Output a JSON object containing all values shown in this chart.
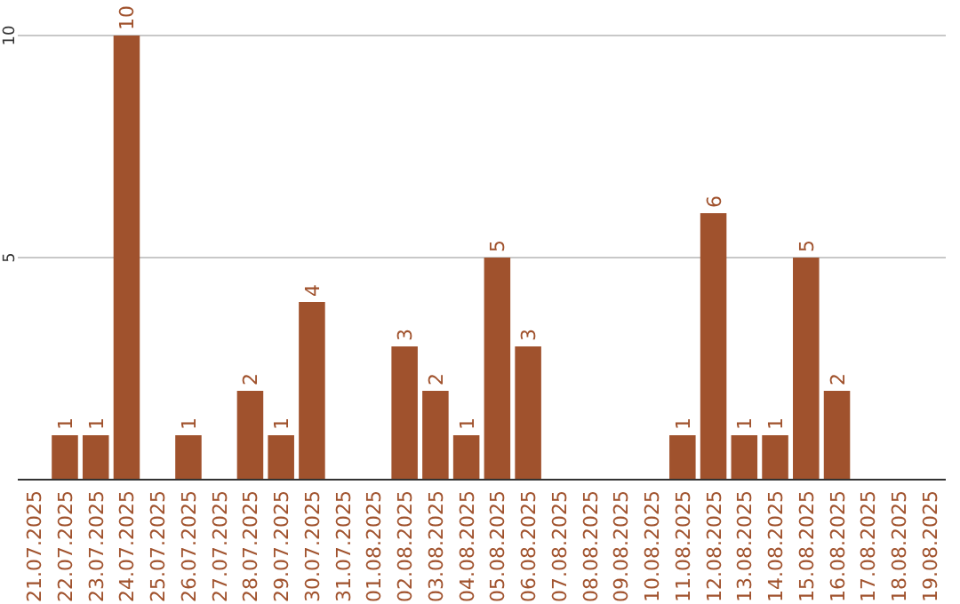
{
  "chart_data": {
    "type": "bar",
    "categories": [
      "21.07.2025",
      "22.07.2025",
      "23.07.2025",
      "24.07.2025",
      "25.07.2025",
      "26.07.2025",
      "27.07.2025",
      "28.07.2025",
      "29.07.2025",
      "30.07.2025",
      "31.07.2025",
      "01.08.2025",
      "02.08.2025",
      "03.08.2025",
      "04.08.2025",
      "05.08.2025",
      "06.08.2025",
      "07.08.2025",
      "08.08.2025",
      "09.08.2025",
      "10.08.2025",
      "11.08.2025",
      "12.08.2025",
      "13.08.2025",
      "14.08.2025",
      "15.08.2025",
      "16.08.2025",
      "17.08.2025",
      "18.08.2025",
      "19.08.2025"
    ],
    "values": [
      null,
      1,
      1,
      10,
      null,
      1,
      null,
      2,
      1,
      4,
      null,
      null,
      3,
      2,
      1,
      5,
      3,
      null,
      null,
      null,
      null,
      1,
      6,
      1,
      1,
      5,
      2,
      null,
      null,
      null
    ],
    "color": "#a0522d",
    "ylim": [
      0,
      10
    ],
    "yticks": [
      5,
      10
    ],
    "grid": "y",
    "data_labels": true
  }
}
